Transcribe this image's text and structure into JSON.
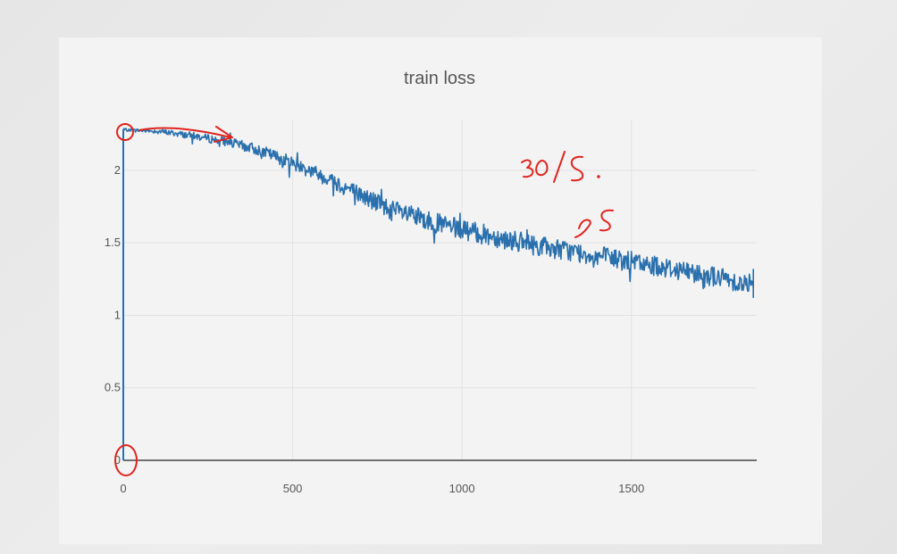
{
  "chart_data": {
    "type": "line",
    "title": "train loss",
    "xlabel": "",
    "ylabel": "",
    "xlim": [
      0,
      1870
    ],
    "ylim": [
      0,
      2.35
    ],
    "x_ticks": [
      {
        "value": 0,
        "label": "0"
      },
      {
        "value": 500,
        "label": "500"
      },
      {
        "value": 1000,
        "label": "1000"
      },
      {
        "value": 1500,
        "label": "1500"
      }
    ],
    "y_ticks": [
      {
        "value": 0,
        "label": "0"
      },
      {
        "value": 0.5,
        "label": "0.5"
      },
      {
        "value": 1,
        "label": "1"
      },
      {
        "value": 1.5,
        "label": "1.5"
      },
      {
        "value": 2,
        "label": "2"
      }
    ],
    "grid": true,
    "legend": "none",
    "series": [
      {
        "color": "#2a70ad",
        "x": [
          0,
          100,
          200,
          300,
          400,
          500,
          600,
          700,
          800,
          900,
          1000,
          1100,
          1200,
          1300,
          1400,
          1500,
          1600,
          1700,
          1800,
          1860
        ],
        "y": [
          2.28,
          2.27,
          2.24,
          2.2,
          2.14,
          2.05,
          1.95,
          1.83,
          1.72,
          1.65,
          1.59,
          1.54,
          1.49,
          1.45,
          1.41,
          1.37,
          1.33,
          1.29,
          1.24,
          1.2
        ]
      }
    ],
    "noise_amplitude": 0.07
  },
  "annotations": {
    "handwritten": [
      "30/S.",
      "2S"
    ]
  }
}
